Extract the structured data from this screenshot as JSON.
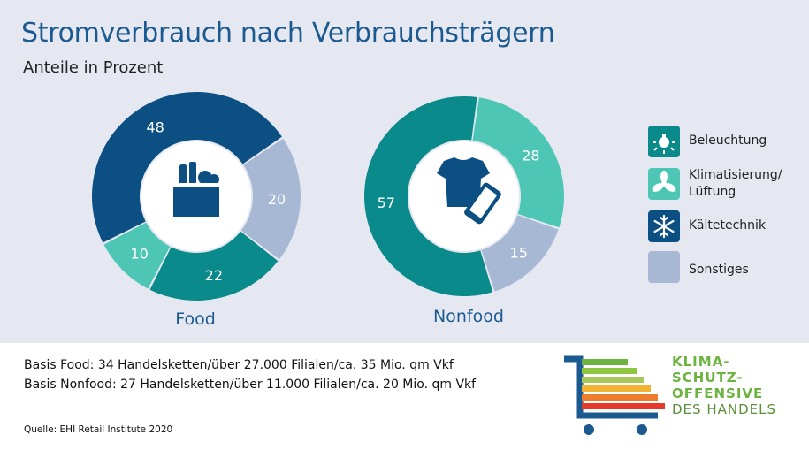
{
  "header": {
    "title": "Stromverbrauch nach Verbrauchsträgern",
    "subtitle": "Anteile in Prozent"
  },
  "colors": {
    "beleuchtung": "#0b8a8c",
    "klimatisierung": "#4ec6b5",
    "kaeltetechnik": "#0b4f83",
    "sonstiges": "#a7b8d4",
    "title": "#1b5a90",
    "background": "#e6e8f1"
  },
  "chart_data": [
    {
      "type": "pie",
      "title": "Food",
      "icon": "grocery-bag-icon",
      "series": [
        {
          "name": "Kältetechnik",
          "value": 48,
          "color": "#0b4f83"
        },
        {
          "name": "Sonstiges",
          "value": 20,
          "color": "#a7b8d4"
        },
        {
          "name": "Beleuchtung",
          "value": 22,
          "color": "#0b8a8c"
        },
        {
          "name": "Klimatisierung/ Lüftung",
          "value": 10,
          "color": "#4ec6b5"
        }
      ]
    },
    {
      "type": "pie",
      "title": "Nonfood",
      "icon": "shirt-and-phone-icon",
      "series": [
        {
          "name": "Klimatisierung/ Lüftung",
          "value": 28,
          "color": "#4ec6b5"
        },
        {
          "name": "Sonstiges",
          "value": 15,
          "color": "#a7b8d4"
        },
        {
          "name": "Beleuchtung",
          "value": 57,
          "color": "#0b8a8c"
        }
      ]
    }
  ],
  "legend": [
    {
      "label": "Beleuchtung",
      "color": "#0b8a8c",
      "icon": "lamp-icon"
    },
    {
      "label": "Klimatisierung/",
      "label2": "Lüftung",
      "color": "#4ec6b5",
      "icon": "fan-icon"
    },
    {
      "label": "Kältetechnik",
      "color": "#0b4f83",
      "icon": "snowflake-icon"
    },
    {
      "label": "Sonstiges",
      "color": "#a7b8d4",
      "icon": ""
    }
  ],
  "footer": {
    "basis_food": "Basis Food: 34 Handelsketten/über 27.000 Filialen/ca. 35 Mio. qm Vkf",
    "basis_nonfood": "Basis Nonfood: 27 Handelsketten/über 11.000 Filialen/ca. 20 Mio. qm Vkf",
    "source": "Quelle: EHI Retail Institute 2020"
  },
  "logo": {
    "line1": "KLIMA-",
    "line2": "SCHUTZ-",
    "line3": "OFFENSIVE",
    "line4": "DES HANDELS"
  }
}
